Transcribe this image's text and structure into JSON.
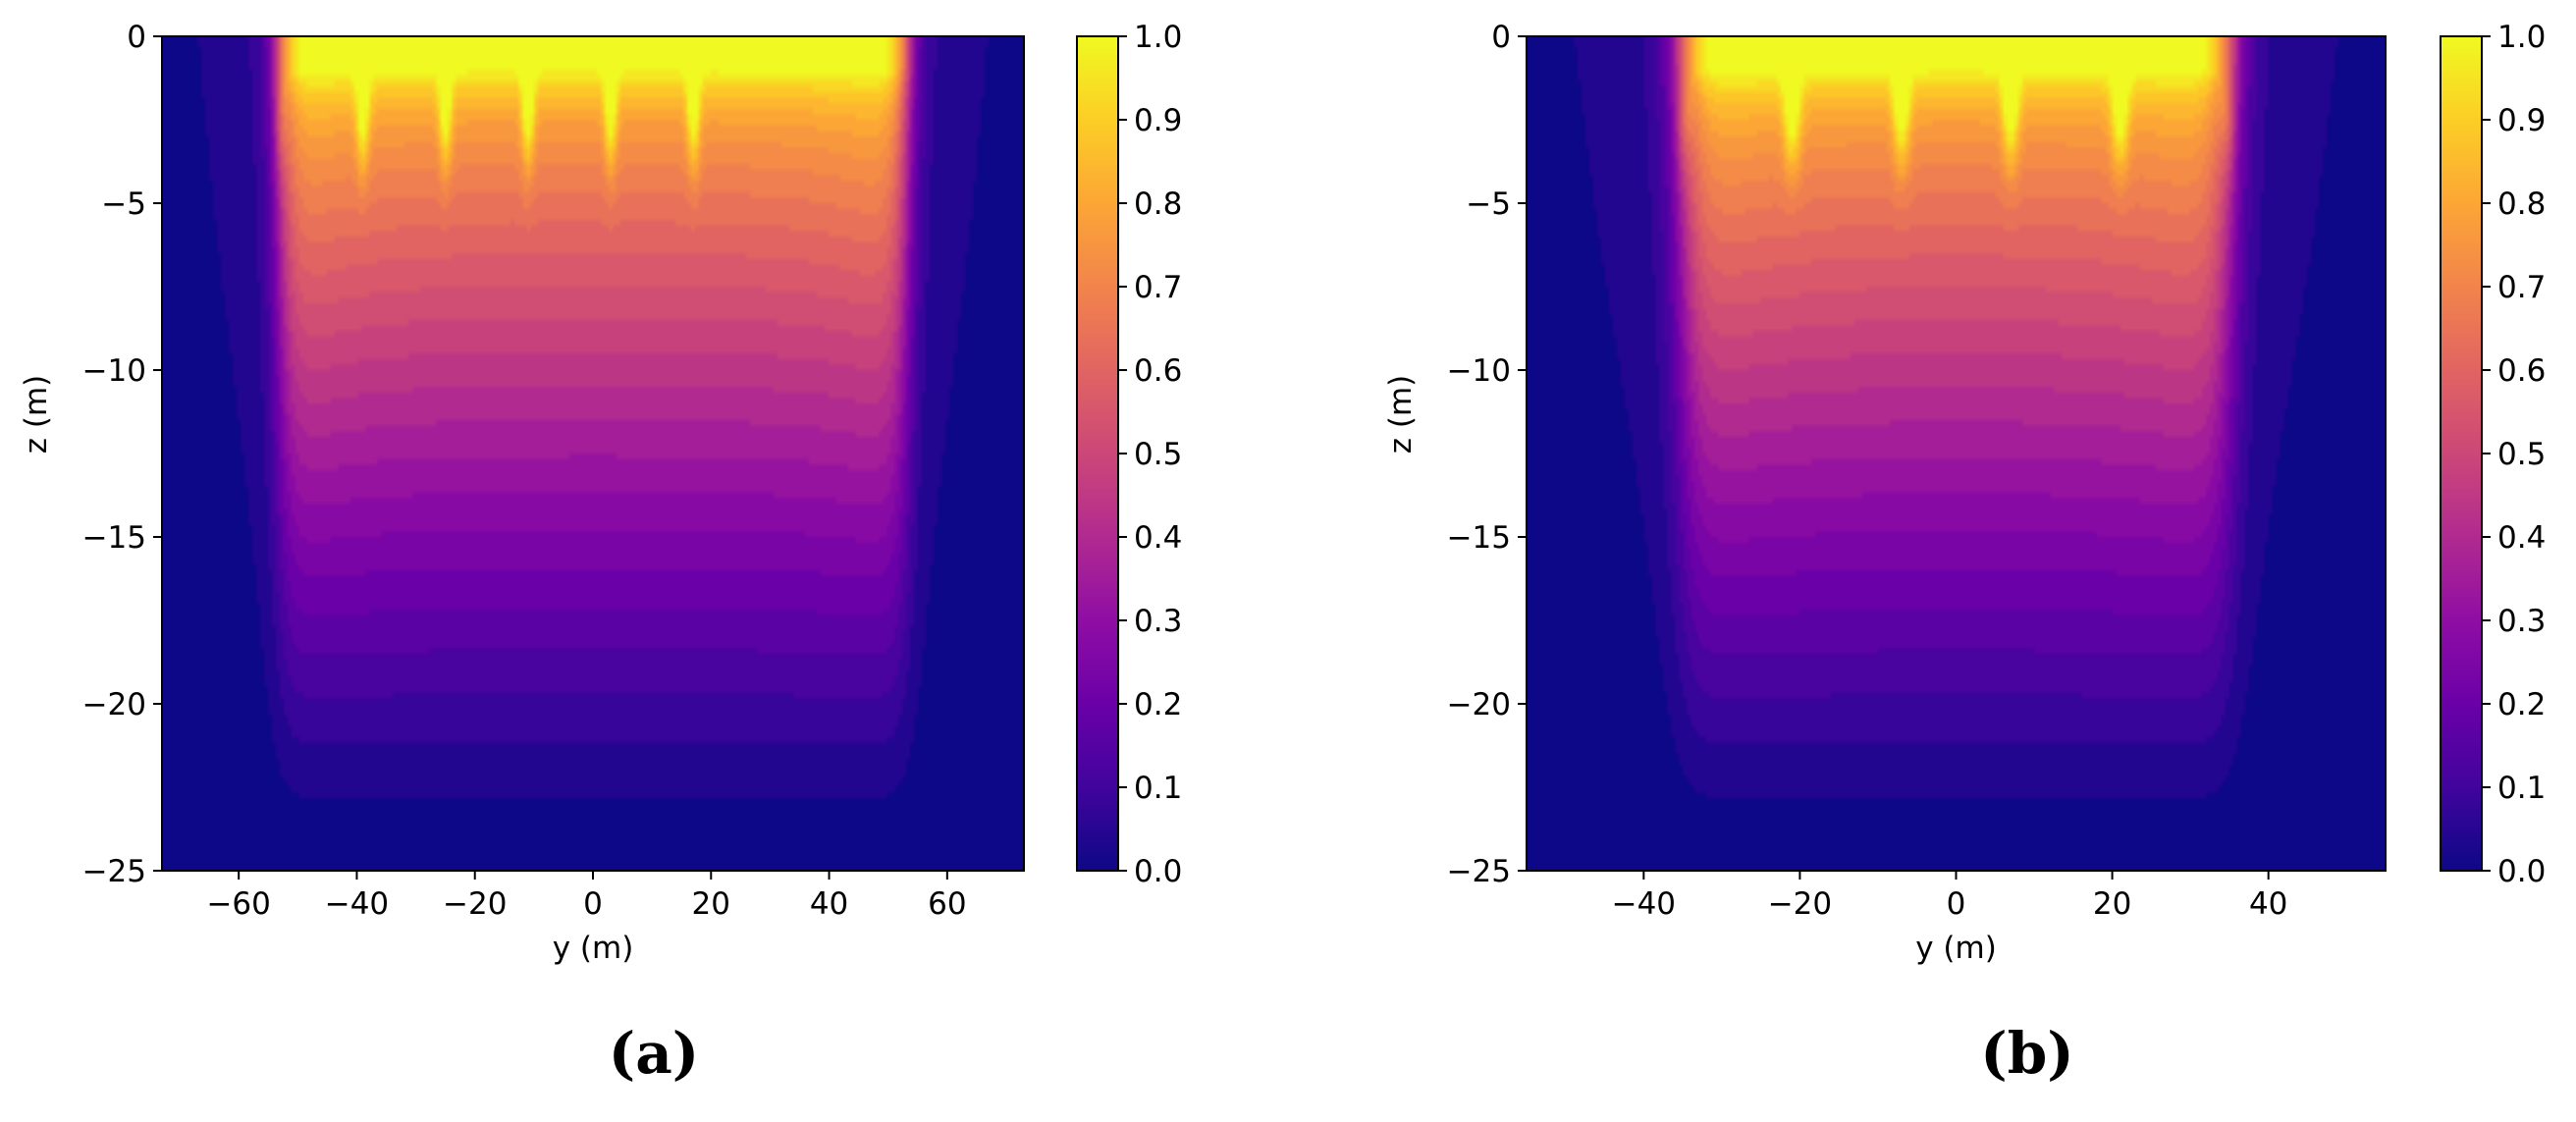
{
  "chart_data": [
    {
      "type": "heatmap",
      "panel_label": "(a)",
      "xlabel": "y (m)",
      "ylabel": "z (m)",
      "xlim": [
        -73,
        73
      ],
      "ylim": [
        -25,
        0
      ],
      "xticks": [
        -60,
        -40,
        -20,
        0,
        20,
        40,
        60
      ],
      "xtick_labels": [
        "−60",
        "−40",
        "−20",
        "0",
        "20",
        "40",
        "60"
      ],
      "yticks": [
        0,
        -5,
        -10,
        -15,
        -20,
        -25
      ],
      "ytick_labels": [
        "0",
        "−5",
        "−10",
        "−15",
        "−20",
        "−25"
      ],
      "colormap": "plasma",
      "clim": [
        0,
        1
      ],
      "colorbar_ticks": [
        0.0,
        0.1,
        0.2,
        0.3,
        0.4,
        0.5,
        0.6,
        0.7,
        0.8,
        0.9,
        1.0
      ],
      "colorbar_tick_labels": [
        "0.0",
        "0.1",
        "0.2",
        "0.3",
        "0.4",
        "0.5",
        "0.6",
        "0.7",
        "0.8",
        "0.9",
        "1.0"
      ],
      "source_region_y": [
        -53,
        53
      ],
      "source_region_depth": 1,
      "spikes_y": [
        -53,
        -39,
        -25,
        -11,
        3,
        17
      ],
      "spike_depth": 3.8,
      "contour_levels": 25,
      "grid": false
    },
    {
      "type": "heatmap",
      "panel_label": "(b)",
      "xlabel": "y (m)",
      "ylabel": "z (m)",
      "xlim": [
        -55,
        55
      ],
      "ylim": [
        -25,
        0
      ],
      "xticks": [
        -40,
        -20,
        0,
        20,
        40
      ],
      "xtick_labels": [
        "−40",
        "−20",
        "0",
        "20",
        "40"
      ],
      "yticks": [
        0,
        -5,
        -10,
        -15,
        -20,
        -25
      ],
      "ytick_labels": [
        "0",
        "−5",
        "−10",
        "−15",
        "−20",
        "−25"
      ],
      "colormap": "plasma",
      "clim": [
        0,
        1
      ],
      "colorbar_ticks": [
        0.0,
        0.1,
        0.2,
        0.3,
        0.4,
        0.5,
        0.6,
        0.7,
        0.8,
        0.9,
        1.0
      ],
      "colorbar_tick_labels": [
        "0.0",
        "0.1",
        "0.2",
        "0.3",
        "0.4",
        "0.5",
        "0.6",
        "0.7",
        "0.8",
        "0.9",
        "1.0"
      ],
      "source_region_y": [
        -35,
        35
      ],
      "source_region_depth": 1,
      "spikes_y": [
        -35,
        -21,
        -7,
        7,
        21,
        35
      ],
      "spike_depth": 3.8,
      "contour_levels": 25,
      "grid": false
    }
  ]
}
